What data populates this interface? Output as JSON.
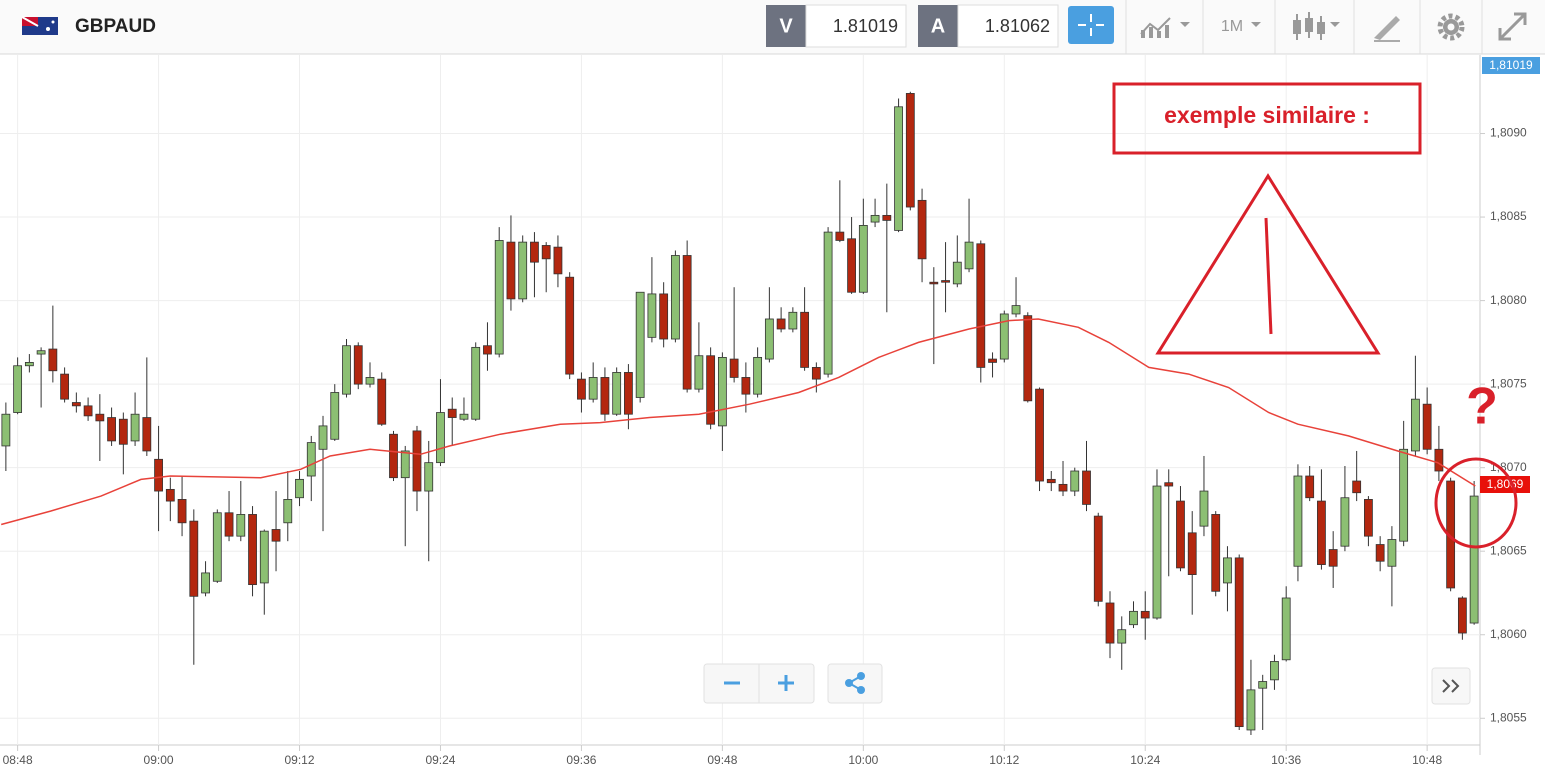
{
  "toolbar": {
    "symbol": "GBPAUD",
    "sell_label": "V",
    "sell_price": "1.81019",
    "buy_label": "A",
    "buy_price": "1.81062",
    "timeframe": "1M"
  },
  "chart_data": {
    "type": "candlestick",
    "annotations": [
      "exemple similaire :",
      "?"
    ],
    "bid_label": "1,81019",
    "last_label": "1,8069",
    "up_color": "#8cbf73",
    "down_color": "#b3270f",
    "grid": true,
    "xlim": [
      -1.5,
      124.5
    ],
    "ylim": [
      1.80534,
      1.80947
    ],
    "xticks": [
      {
        "value": 0,
        "label": "08:48"
      },
      {
        "value": 12,
        "label": "09:00"
      },
      {
        "value": 24,
        "label": "09:12"
      },
      {
        "value": 36,
        "label": "09:24"
      },
      {
        "value": 48,
        "label": "09:36"
      },
      {
        "value": 60,
        "label": "09:48"
      },
      {
        "value": 72,
        "label": "10:00"
      },
      {
        "value": 84,
        "label": "10:12"
      },
      {
        "value": 96,
        "label": "10:24"
      },
      {
        "value": 108,
        "label": "10:36"
      },
      {
        "value": 120,
        "label": "10:48"
      }
    ],
    "yticks": [
      {
        "value": 1.8055,
        "label": "1,8055"
      },
      {
        "value": 1.806,
        "label": "1,8060"
      },
      {
        "value": 1.8065,
        "label": "1,8065"
      },
      {
        "value": 1.807,
        "label": "1,8070"
      },
      {
        "value": 1.8075,
        "label": "1,8075"
      },
      {
        "value": 1.808,
        "label": "1,8080"
      },
      {
        "value": 1.8085,
        "label": "1,8085"
      },
      {
        "value": 1.809,
        "label": "1,8090"
      }
    ],
    "x": [
      -1,
      0,
      1,
      2,
      3,
      4,
      5,
      6,
      7,
      8,
      9,
      10,
      11,
      12,
      13,
      14,
      15,
      16,
      17,
      18,
      19,
      20,
      21,
      22,
      23,
      24,
      25,
      26,
      27,
      28,
      29,
      30,
      31,
      32,
      33,
      34,
      35,
      36,
      37,
      38,
      39,
      40,
      41,
      42,
      43,
      44,
      45,
      46,
      47,
      48,
      49,
      50,
      51,
      52,
      53,
      54,
      55,
      56,
      57,
      58,
      59,
      60,
      61,
      62,
      63,
      64,
      65,
      66,
      67,
      68,
      69,
      70,
      71,
      72,
      73,
      74,
      75,
      76,
      77,
      78,
      79,
      80,
      81,
      82,
      83,
      84,
      85,
      86,
      87,
      88,
      89,
      90,
      91,
      92,
      93,
      94,
      95,
      96,
      97,
      98,
      99,
      100,
      101,
      102,
      103,
      104,
      105,
      106,
      107,
      108,
      109,
      110,
      111,
      112,
      113,
      114,
      115,
      116,
      117,
      118,
      119,
      120,
      121,
      122,
      123,
      124
    ],
    "open": [
      1.80713,
      1.80733,
      1.80761,
      1.80768,
      1.80771,
      1.80756,
      1.80739,
      1.80737,
      1.80732,
      1.8073,
      1.80729,
      1.80716,
      1.8073,
      1.80705,
      1.80687,
      1.80681,
      1.80668,
      1.80625,
      1.80632,
      1.80673,
      1.80659,
      1.80672,
      1.80631,
      1.80663,
      1.80667,
      1.80682,
      1.80695,
      1.80711,
      1.80717,
      1.80744,
      1.80773,
      1.8075,
      1.80753,
      1.8072,
      1.80694,
      1.80722,
      1.80686,
      1.80703,
      1.80735,
      1.80729,
      1.80729,
      1.80773,
      1.80768,
      1.80835,
      1.80801,
      1.80835,
      1.80833,
      1.80832,
      1.80814,
      1.80753,
      1.80741,
      1.80754,
      1.80732,
      1.80757,
      1.80742,
      1.80778,
      1.80804,
      1.80777,
      1.80827,
      1.80747,
      1.80767,
      1.80725,
      1.80765,
      1.80754,
      1.80744,
      1.80765,
      1.80789,
      1.80783,
      1.80793,
      1.8076,
      1.80756,
      1.80841,
      1.80837,
      1.80805,
      1.80847,
      1.80851,
      1.80842,
      1.80924,
      1.8086,
      1.80811,
      1.80812,
      1.8081,
      1.80819,
      1.80834,
      1.80765,
      1.80765,
      1.80792,
      1.80791,
      1.80747,
      1.80693,
      1.8069,
      1.80686,
      1.80698,
      1.80671,
      1.80619,
      1.80595,
      1.80606,
      1.80614,
      1.8061,
      1.80691,
      1.8068,
      1.80661,
      1.80665,
      1.80672,
      1.80631,
      1.80646,
      1.80543,
      1.80568,
      1.80573,
      1.80585,
      1.80641,
      1.80695,
      1.8068,
      1.80651,
      1.80653,
      1.80692,
      1.80681,
      1.80654,
      1.80641,
      1.80656,
      1.8071,
      1.80738,
      1.80711,
      1.80692,
      1.80622,
      1.80607
    ],
    "high": [
      1.80739,
      1.80766,
      1.80768,
      1.80772,
      1.80797,
      1.8076,
      1.80745,
      1.80742,
      1.80744,
      1.80736,
      1.80733,
      1.80745,
      1.80766,
      1.80725,
      1.80694,
      1.80695,
      1.80675,
      1.80644,
      1.80675,
      1.80686,
      1.80692,
      1.80677,
      1.80663,
      1.80686,
      1.80698,
      1.80698,
      1.80719,
      1.80731,
      1.8075,
      1.80777,
      1.80775,
      1.80763,
      1.80757,
      1.80722,
      1.80713,
      1.80725,
      1.80716,
      1.80753,
      1.80742,
      1.80742,
      1.80775,
      1.80787,
      1.80844,
      1.80851,
      1.80839,
      1.80841,
      1.80835,
      1.80839,
      1.80817,
      1.80757,
      1.80763,
      1.8076,
      1.8076,
      1.80762,
      1.80805,
      1.80826,
      1.80811,
      1.8083,
      1.80836,
      1.80787,
      1.80772,
      1.80769,
      1.80808,
      1.80763,
      1.80772,
      1.80808,
      1.80796,
      1.80796,
      1.80808,
      1.80763,
      1.80844,
      1.80872,
      1.8085,
      1.80861,
      1.80861,
      1.8087,
      1.80921,
      1.80925,
      1.80867,
      1.8082,
      1.80835,
      1.80839,
      1.80861,
      1.80836,
      1.80769,
      1.80794,
      1.80814,
      1.80793,
      1.80748,
      1.80698,
      1.80704,
      1.807,
      1.80716,
      1.80673,
      1.80626,
      1.80611,
      1.8062,
      1.80626,
      1.80699,
      1.80699,
      1.80689,
      1.80674,
      1.80707,
      1.80674,
      1.80653,
      1.80648,
      1.80585,
      1.80576,
      1.80588,
      1.80629,
      1.80702,
      1.80701,
      1.80699,
      1.80662,
      1.80701,
      1.8071,
      1.80683,
      1.80659,
      1.80665,
      1.80728,
      1.80767,
      1.80748,
      1.80725,
      1.80694,
      1.80623,
      1.80692
    ],
    "low": [
      1.80698,
      1.80732,
      1.80757,
      1.80736,
      1.80751,
      1.80739,
      1.80733,
      1.80728,
      1.80704,
      1.80713,
      1.80696,
      1.80713,
      1.80707,
      1.80662,
      1.80668,
      1.80659,
      1.80582,
      1.80623,
      1.80631,
      1.80656,
      1.80656,
      1.80623,
      1.80612,
      1.80638,
      1.80656,
      1.80677,
      1.8068,
      1.80662,
      1.80716,
      1.80742,
      1.80747,
      1.80748,
      1.80725,
      1.80692,
      1.80653,
      1.80674,
      1.80644,
      1.80701,
      1.80713,
      1.80728,
      1.80728,
      1.80758,
      1.80766,
      1.80794,
      1.80799,
      1.80802,
      1.80805,
      1.80808,
      1.80753,
      1.80733,
      1.80739,
      1.80728,
      1.80731,
      1.80723,
      1.80739,
      1.80775,
      1.80772,
      1.80775,
      1.80745,
      1.80745,
      1.80723,
      1.8071,
      1.80751,
      1.80733,
      1.80742,
      1.80763,
      1.80781,
      1.80781,
      1.80758,
      1.80745,
      1.80754,
      1.80835,
      1.80804,
      1.80804,
      1.80844,
      1.80793,
      1.80841,
      1.80854,
      1.80811,
      1.80762,
      1.80793,
      1.80808,
      1.80817,
      1.80751,
      1.80754,
      1.80763,
      1.8079,
      1.80739,
      1.80686,
      1.80686,
      1.80683,
      1.80683,
      1.80674,
      1.80617,
      1.80586,
      1.80579,
      1.80604,
      1.80597,
      1.80609,
      1.80635,
      1.80638,
      1.80612,
      1.80659,
      1.80623,
      1.80614,
      1.80543,
      1.8054,
      1.80543,
      1.80567,
      1.80584,
      1.80632,
      1.8068,
      1.80639,
      1.80628,
      1.8065,
      1.8068,
      1.80653,
      1.80638,
      1.80617,
      1.80653,
      1.80707,
      1.80708,
      1.80692,
      1.80626,
      1.80597,
      1.80606
    ],
    "close": [
      1.80732,
      1.80761,
      1.80763,
      1.8077,
      1.80758,
      1.80741,
      1.80737,
      1.80731,
      1.80728,
      1.80716,
      1.80714,
      1.80732,
      1.8071,
      1.80686,
      1.8068,
      1.80667,
      1.80623,
      1.80637,
      1.80673,
      1.80659,
      1.80672,
      1.8063,
      1.80662,
      1.80656,
      1.80681,
      1.80693,
      1.80715,
      1.80725,
      1.80745,
      1.80773,
      1.8075,
      1.80754,
      1.80726,
      1.80694,
      1.8071,
      1.80686,
      1.80703,
      1.80733,
      1.8073,
      1.80732,
      1.80772,
      1.80768,
      1.80836,
      1.80801,
      1.80835,
      1.80823,
      1.80825,
      1.80816,
      1.80756,
      1.80741,
      1.80754,
      1.80732,
      1.80757,
      1.80732,
      1.80805,
      1.80804,
      1.80777,
      1.80827,
      1.80747,
      1.80767,
      1.80726,
      1.80766,
      1.80754,
      1.80744,
      1.80766,
      1.80789,
      1.80783,
      1.80793,
      1.8076,
      1.80753,
      1.80841,
      1.80836,
      1.80805,
      1.80845,
      1.80851,
      1.80848,
      1.80916,
      1.80856,
      1.80825,
      1.8081,
      1.80811,
      1.80823,
      1.80835,
      1.8076,
      1.80763,
      1.80792,
      1.80797,
      1.8074,
      1.80692,
      1.80691,
      1.80686,
      1.80698,
      1.80678,
      1.8062,
      1.80595,
      1.80603,
      1.80614,
      1.8061,
      1.80689,
      1.80689,
      1.8064,
      1.80636,
      1.80686,
      1.80626,
      1.80646,
      1.80545,
      1.80567,
      1.80572,
      1.80584,
      1.80622,
      1.80695,
      1.80682,
      1.80642,
      1.80641,
      1.80682,
      1.80685,
      1.80659,
      1.80644,
      1.80657,
      1.80711,
      1.80741,
      1.80711,
      1.80698,
      1.80628,
      1.80601,
      1.80683
    ],
    "moving_average": {
      "color": "#e8423a",
      "x": [
        -1.4,
        2.8,
        7.1,
        10.5,
        13.0,
        20.7,
        24.1,
        26.6,
        30.0,
        34.3,
        36.8,
        41.1,
        46.2,
        49.6,
        53.8,
        58.0,
        62.3,
        66.5,
        69.9,
        73.3,
        76.7,
        81.0,
        84.4,
        86.9,
        90.3,
        92.9,
        96.3,
        99.7,
        103.1,
        106.5,
        109.0,
        113.3,
        117.5,
        120.9,
        124.1
      ],
      "values": [
        1.80666,
        1.80674,
        1.80683,
        1.80693,
        1.80695,
        1.80694,
        1.80699,
        1.80707,
        1.80711,
        1.80708,
        1.80713,
        1.8072,
        1.80726,
        1.80727,
        1.8073,
        1.80732,
        1.80738,
        1.80745,
        1.80754,
        1.80766,
        1.80775,
        1.80783,
        1.80788,
        1.80789,
        1.80784,
        1.80775,
        1.8076,
        1.80756,
        1.80748,
        1.80733,
        1.80726,
        1.80719,
        1.8071,
        1.80703,
        1.80689
      ]
    }
  }
}
